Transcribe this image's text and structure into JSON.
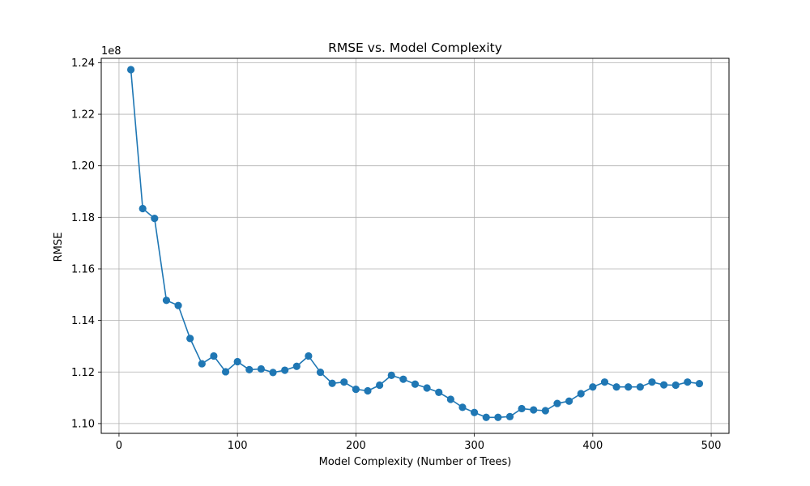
{
  "chart_data": {
    "type": "line",
    "title": "RMSE vs. Model Complexity",
    "xlabel": "Model Complexity (Number of Trees)",
    "ylabel": "RMSE",
    "y_offset_label": "1e8",
    "xlim": [
      -15,
      515
    ],
    "ylim": [
      1.0962,
      1.2417
    ],
    "xticks": [
      0,
      100,
      200,
      300,
      400,
      500
    ],
    "yticks": [
      1.1,
      1.12,
      1.14,
      1.16,
      1.18,
      1.2,
      1.22,
      1.24
    ],
    "xtick_labels": [
      "0",
      "100",
      "200",
      "300",
      "400",
      "500"
    ],
    "ytick_labels": [
      "1.10",
      "1.12",
      "1.14",
      "1.16",
      "1.18",
      "1.20",
      "1.22",
      "1.24"
    ],
    "grid": true,
    "color": "#1f77b4",
    "marker": "circle",
    "x": [
      10,
      20,
      30,
      40,
      50,
      60,
      70,
      80,
      90,
      100,
      110,
      120,
      130,
      140,
      150,
      160,
      170,
      180,
      190,
      200,
      210,
      220,
      230,
      240,
      250,
      260,
      270,
      280,
      290,
      300,
      310,
      320,
      330,
      340,
      350,
      360,
      370,
      380,
      390,
      400,
      410,
      420,
      430,
      440,
      450,
      460,
      470,
      480,
      490
    ],
    "y": [
      1.2373,
      1.1834,
      1.1796,
      1.1478,
      1.1458,
      1.133,
      1.1232,
      1.1262,
      1.1201,
      1.124,
      1.1209,
      1.1212,
      1.1198,
      1.1207,
      1.1222,
      1.1262,
      1.1199,
      1.1156,
      1.1161,
      1.1133,
      1.1127,
      1.1149,
      1.1187,
      1.1172,
      1.1153,
      1.1138,
      1.1121,
      1.1094,
      1.1063,
      1.1043,
      1.1024,
      1.1024,
      1.1027,
      1.1058,
      1.1053,
      1.105,
      1.1078,
      1.1087,
      1.1116,
      1.1142,
      1.1161,
      1.1142,
      1.1142,
      1.1142,
      1.1161,
      1.115,
      1.1149,
      1.1161,
      1.1155
    ]
  }
}
